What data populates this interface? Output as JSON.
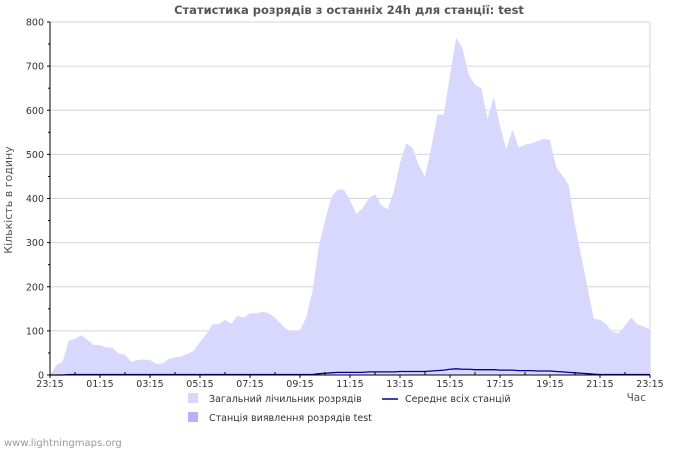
{
  "chart_data": {
    "type": "area",
    "title": "Статистика розрядів з останніх 24h для станції: test",
    "ylabel": "Кількість в годину",
    "xlabel": "Час",
    "ylim": [
      0,
      800
    ],
    "yticks": [
      0,
      100,
      200,
      300,
      400,
      500,
      600,
      700,
      800
    ],
    "xticks": [
      "23:15",
      "01:15",
      "03:15",
      "05:15",
      "07:15",
      "09:15",
      "11:15",
      "13:15",
      "15:15",
      "17:15",
      "19:15",
      "21:15",
      "23:15"
    ],
    "x_hours": [
      0,
      0.25,
      0.5,
      0.75,
      1,
      1.25,
      1.5,
      1.75,
      2,
      2.25,
      2.5,
      2.75,
      3,
      3.25,
      3.5,
      3.75,
      4,
      4.25,
      4.5,
      4.75,
      5,
      5.25,
      5.5,
      5.75,
      6,
      6.25,
      6.5,
      6.75,
      7,
      7.25,
      7.5,
      7.75,
      8,
      8.25,
      8.5,
      8.75,
      9,
      9.25,
      9.5,
      9.75,
      10,
      10.25,
      10.5,
      10.75,
      11,
      11.25,
      11.5,
      11.75,
      12,
      12.25,
      12.5,
      12.75,
      13,
      13.25,
      13.5,
      13.75,
      14,
      14.25,
      14.5,
      14.75,
      15,
      15.25,
      15.5,
      15.75,
      16,
      16.25,
      16.5,
      16.75,
      17,
      17.25,
      17.5,
      17.75,
      18,
      18.25,
      18.5,
      18.75,
      19,
      19.25,
      19.5,
      19.75,
      20,
      20.25,
      20.5,
      20.75,
      21,
      21.25,
      21.5,
      21.75,
      22,
      22.25,
      22.5,
      22.75,
      23,
      23.25,
      23.5,
      23.75,
      24
    ],
    "series": [
      {
        "name": "Загальний лічильник розрядів",
        "color": "#d8d8ff",
        "values": [
          0,
          22,
          30,
          78,
          82,
          90,
          80,
          68,
          68,
          62,
          62,
          48,
          46,
          30,
          34,
          35,
          34,
          25,
          26,
          36,
          40,
          42,
          48,
          55,
          75,
          92,
          115,
          115,
          125,
          116,
          134,
          130,
          140,
          140,
          143,
          140,
          130,
          115,
          102,
          100,
          102,
          130,
          190,
          290,
          350,
          402,
          420,
          420,
          396,
          365,
          378,
          400,
          410,
          385,
          375,
          415,
          480,
          525,
          515,
          475,
          450,
          515,
          590,
          590,
          680,
          765,
          740,
          680,
          658,
          650,
          580,
          630,
          565,
          512,
          556,
          515,
          522,
          525,
          530,
          535,
          532,
          470,
          452,
          430,
          340,
          270,
          198,
          128,
          125,
          115,
          97,
          95,
          112,
          130,
          115,
          110,
          103
        ]
      },
      {
        "name": "Середнє всіх станцій",
        "color": "#000099",
        "values": [
          0,
          0,
          0,
          1,
          1,
          1,
          1,
          1,
          1,
          1,
          1,
          1,
          1,
          1,
          1,
          1,
          1,
          1,
          1,
          1,
          1,
          1,
          1,
          1,
          1,
          1,
          1,
          1,
          1,
          1,
          1,
          1,
          1,
          1,
          1,
          1,
          1,
          1,
          1,
          1,
          1,
          1,
          1,
          3,
          4,
          5,
          6,
          6,
          6,
          6,
          6,
          7,
          7,
          7,
          7,
          7,
          8,
          8,
          8,
          8,
          8,
          9,
          10,
          11,
          13,
          14,
          13,
          13,
          12,
          12,
          12,
          12,
          11,
          11,
          11,
          10,
          10,
          10,
          9,
          9,
          9,
          8,
          7,
          6,
          5,
          4,
          3,
          2,
          1,
          1,
          1,
          1,
          1,
          1,
          1,
          1,
          1
        ]
      },
      {
        "name": "Станція виявлення розрядів test",
        "color": "#b4b4f8",
        "values": [
          0,
          0,
          0,
          0,
          0,
          0,
          0,
          0,
          0,
          0,
          0,
          0,
          0,
          0,
          0,
          0,
          0,
          0,
          0,
          0,
          0,
          0,
          0,
          0,
          0,
          0,
          0,
          0,
          0,
          0,
          0,
          0,
          0,
          0,
          0,
          0,
          0,
          0,
          0,
          0,
          0,
          0,
          0,
          0,
          0,
          0,
          0,
          0,
          0,
          0,
          0,
          0,
          0,
          0,
          0,
          0,
          0,
          0,
          0,
          0,
          0,
          0,
          0,
          0,
          0,
          0,
          0,
          0,
          0,
          0,
          0,
          0,
          0,
          0,
          0,
          0,
          0,
          0,
          0,
          0,
          0,
          0,
          0,
          0,
          0,
          0,
          0,
          0,
          0,
          0,
          0,
          0,
          0,
          0,
          0,
          0,
          0
        ]
      }
    ],
    "legend": [
      {
        "label": "Загальний лічильник розрядів",
        "kind": "box",
        "color": "#d8d8ff"
      },
      {
        "label": "Середнє всіх станцій",
        "kind": "line",
        "color": "#000099"
      },
      {
        "label": "Станція виявлення розрядів test",
        "kind": "box",
        "color": "#b4b4f8"
      }
    ],
    "legend_position": "bottom",
    "grid": true
  },
  "footer": {
    "source": "www.lightningmaps.org"
  }
}
